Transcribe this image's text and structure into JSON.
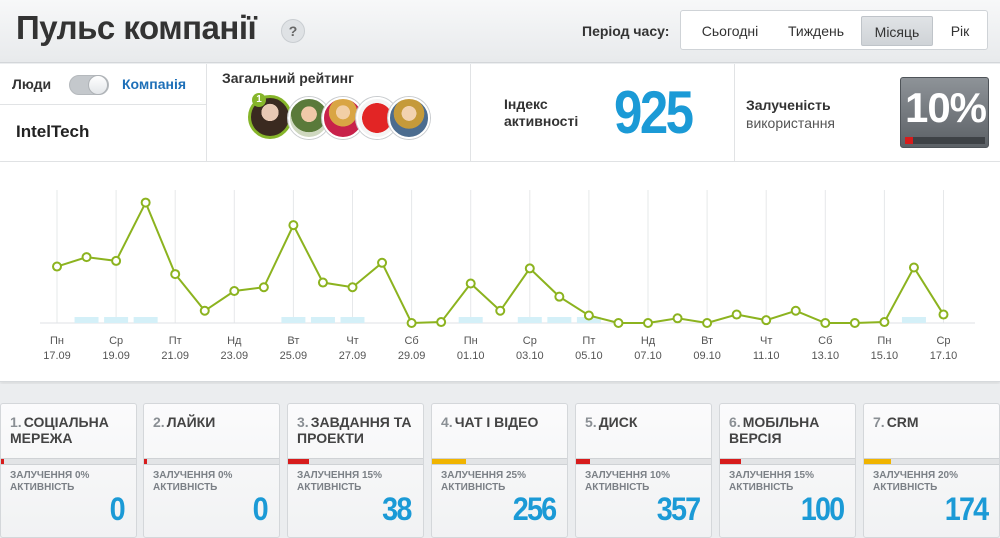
{
  "header": {
    "title": "Пульс компанії",
    "help_label": "?",
    "period_label": "Період часу:",
    "periods": [
      "Сьогодні",
      "Тиждень",
      "Місяць",
      "Рік"
    ],
    "active_period": "Місяць"
  },
  "scope": {
    "left_label": "Люди",
    "right_label": "Компанія",
    "selected": "Компанія",
    "company_name": "IntelTech"
  },
  "rating": {
    "label": "Загальний рейтинг",
    "top_rank": "1",
    "avatars": [
      "avatar-1",
      "avatar-2",
      "avatar-3",
      "avatar-4",
      "avatar-5"
    ]
  },
  "activity_index": {
    "label_line1": "Індекс",
    "label_line2": "активності",
    "value": "925"
  },
  "engagement": {
    "label": "Залученість",
    "sublabel": "використання",
    "value": "10%",
    "level": 0.1,
    "bar_color": "#d71c1c"
  },
  "chart_data": {
    "type": "line",
    "x": [
      "17.09",
      "18.09",
      "19.09",
      "20.09",
      "21.09",
      "22.09",
      "23.09",
      "24.09",
      "25.09",
      "26.09",
      "27.09",
      "28.09",
      "29.09",
      "30.09",
      "01.10",
      "02.10",
      "03.10",
      "04.10",
      "05.10",
      "06.10",
      "07.10",
      "08.10",
      "09.10",
      "10.10",
      "11.10",
      "12.10",
      "13.10",
      "14.10",
      "15.10",
      "16.10",
      "17.10"
    ],
    "values": [
      60,
      70,
      66,
      128,
      52,
      13,
      34,
      38,
      104,
      43,
      38,
      64,
      0,
      1,
      42,
      13,
      58,
      28,
      8,
      0,
      0,
      5,
      0,
      9,
      3,
      13,
      0,
      0,
      1,
      59,
      9
    ],
    "tick_days": [
      "Пн",
      "Ср",
      "Пт",
      "Нд",
      "Вт",
      "Чт",
      "Сб",
      "Пн",
      "Ср",
      "Пт",
      "Нд",
      "Вт",
      "Чт",
      "Сб",
      "Пн",
      "Ср"
    ],
    "tick_dates": [
      "17.09",
      "19.09",
      "21.09",
      "23.09",
      "25.09",
      "27.09",
      "29.09",
      "01.10",
      "03.10",
      "05.10",
      "07.10",
      "09.10",
      "11.10",
      "13.10",
      "15.10",
      "17.10"
    ],
    "highlighted_days": [
      "18.09",
      "19.09",
      "20.09",
      "25.09",
      "26.09",
      "27.09",
      "01.10",
      "03.10",
      "04.10",
      "05.10",
      "16.10"
    ],
    "ylim": [
      0,
      135
    ],
    "grid": "vertical",
    "line_color": "#8cb31f",
    "highlight_color": "#d4f0f8"
  },
  "tools": [
    {
      "num": "1.",
      "line1": "СОЦІАЛЬНА",
      "line2": "МЕРЕЖА",
      "stat": "ЗАЛУЧЕННЯ 0%",
      "stat2": "АКТИВНІСТЬ",
      "value": "0",
      "level": 0.0,
      "color": "#d71c1c"
    },
    {
      "num": "2.",
      "line1": "ЛАЙКИ",
      "line2": "",
      "stat": "ЗАЛУЧЕННЯ 0%",
      "stat2": "АКТИВНІСТЬ",
      "value": "0",
      "level": 0.0,
      "color": "#d71c1c"
    },
    {
      "num": "3.",
      "line1": "ЗАВДАННЯ ТА",
      "line2": "ПРОЕКТИ",
      "stat": "ЗАЛУЧЕННЯ 15%",
      "stat2": "АКТИВНІСТЬ",
      "value": "38",
      "level": 0.15,
      "color": "#d71c1c"
    },
    {
      "num": "4.",
      "line1": "ЧАТ І ВІДЕО",
      "line2": "",
      "stat": "ЗАЛУЧЕННЯ 25%",
      "stat2": "АКТИВНІСТЬ",
      "value": "256",
      "level": 0.25,
      "color": "#f0b400"
    },
    {
      "num": "5.",
      "line1": "ДИСК",
      "line2": "",
      "stat": "ЗАЛУЧЕННЯ 10%",
      "stat2": "АКТИВНІСТЬ",
      "value": "357",
      "level": 0.1,
      "color": "#d71c1c"
    },
    {
      "num": "6.",
      "line1": "МОБІЛЬНА",
      "line2": "ВЕРСІЯ",
      "stat": "ЗАЛУЧЕННЯ 15%",
      "stat2": "АКТИВНІСТЬ",
      "value": "100",
      "level": 0.15,
      "color": "#d71c1c"
    },
    {
      "num": "7.",
      "line1": "CRM",
      "line2": "",
      "stat": "ЗАЛУЧЕННЯ 20%",
      "stat2": "АКТИВНІСТЬ",
      "value": "174",
      "level": 0.2,
      "color": "#f0b400"
    }
  ]
}
